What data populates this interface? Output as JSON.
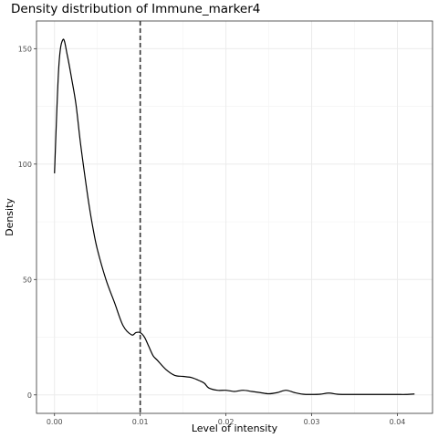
{
  "chart_data": {
    "type": "line",
    "title": "Density distribution of Immune_marker4",
    "xlabel": "Level of intensity",
    "ylabel": "Density",
    "xlim": [
      -0.0021,
      0.0441
    ],
    "ylim": [
      -8,
      162
    ],
    "x_ticks": [
      0.0,
      0.01,
      0.02,
      0.03,
      0.04
    ],
    "x_tick_labels": [
      "0.00",
      "0.01",
      "0.02",
      "0.03",
      "0.04"
    ],
    "y_ticks": [
      0,
      50,
      100,
      150
    ],
    "y_tick_labels": [
      "0",
      "50",
      "100",
      "150"
    ],
    "grid": true,
    "reference_line": {
      "x": 0.01,
      "style": "dashed",
      "color": "#333333"
    },
    "series": [
      {
        "color": "#000000",
        "x": [
          0.0,
          0.0005,
          0.001,
          0.0015,
          0.002,
          0.0025,
          0.003,
          0.0035,
          0.004,
          0.0045,
          0.005,
          0.006,
          0.007,
          0.008,
          0.009,
          0.0095,
          0.01,
          0.0105,
          0.011,
          0.0115,
          0.012,
          0.013,
          0.014,
          0.015,
          0.016,
          0.017,
          0.0175,
          0.018,
          0.019,
          0.02,
          0.021,
          0.022,
          0.023,
          0.024,
          0.025,
          0.026,
          0.027,
          0.028,
          0.029,
          0.03,
          0.031,
          0.032,
          0.033,
          0.034,
          0.035,
          0.036,
          0.037,
          0.038,
          0.039,
          0.04,
          0.041,
          0.042
        ],
        "y": [
          96,
          142,
          154,
          147,
          137,
          126,
          110,
          96,
          83,
          72,
          63,
          50,
          40,
          30,
          26,
          27,
          27,
          25,
          21,
          17,
          15,
          11,
          8.5,
          8,
          7.5,
          6,
          5,
          3,
          2,
          2,
          1.5,
          2,
          1.5,
          1,
          0.5,
          1,
          2,
          1,
          0.3,
          0.2,
          0.3,
          0.8,
          0.3,
          0.2,
          0.2,
          0.2,
          0.2,
          0.2,
          0.2,
          0.2,
          0.2,
          0.4
        ]
      }
    ]
  }
}
